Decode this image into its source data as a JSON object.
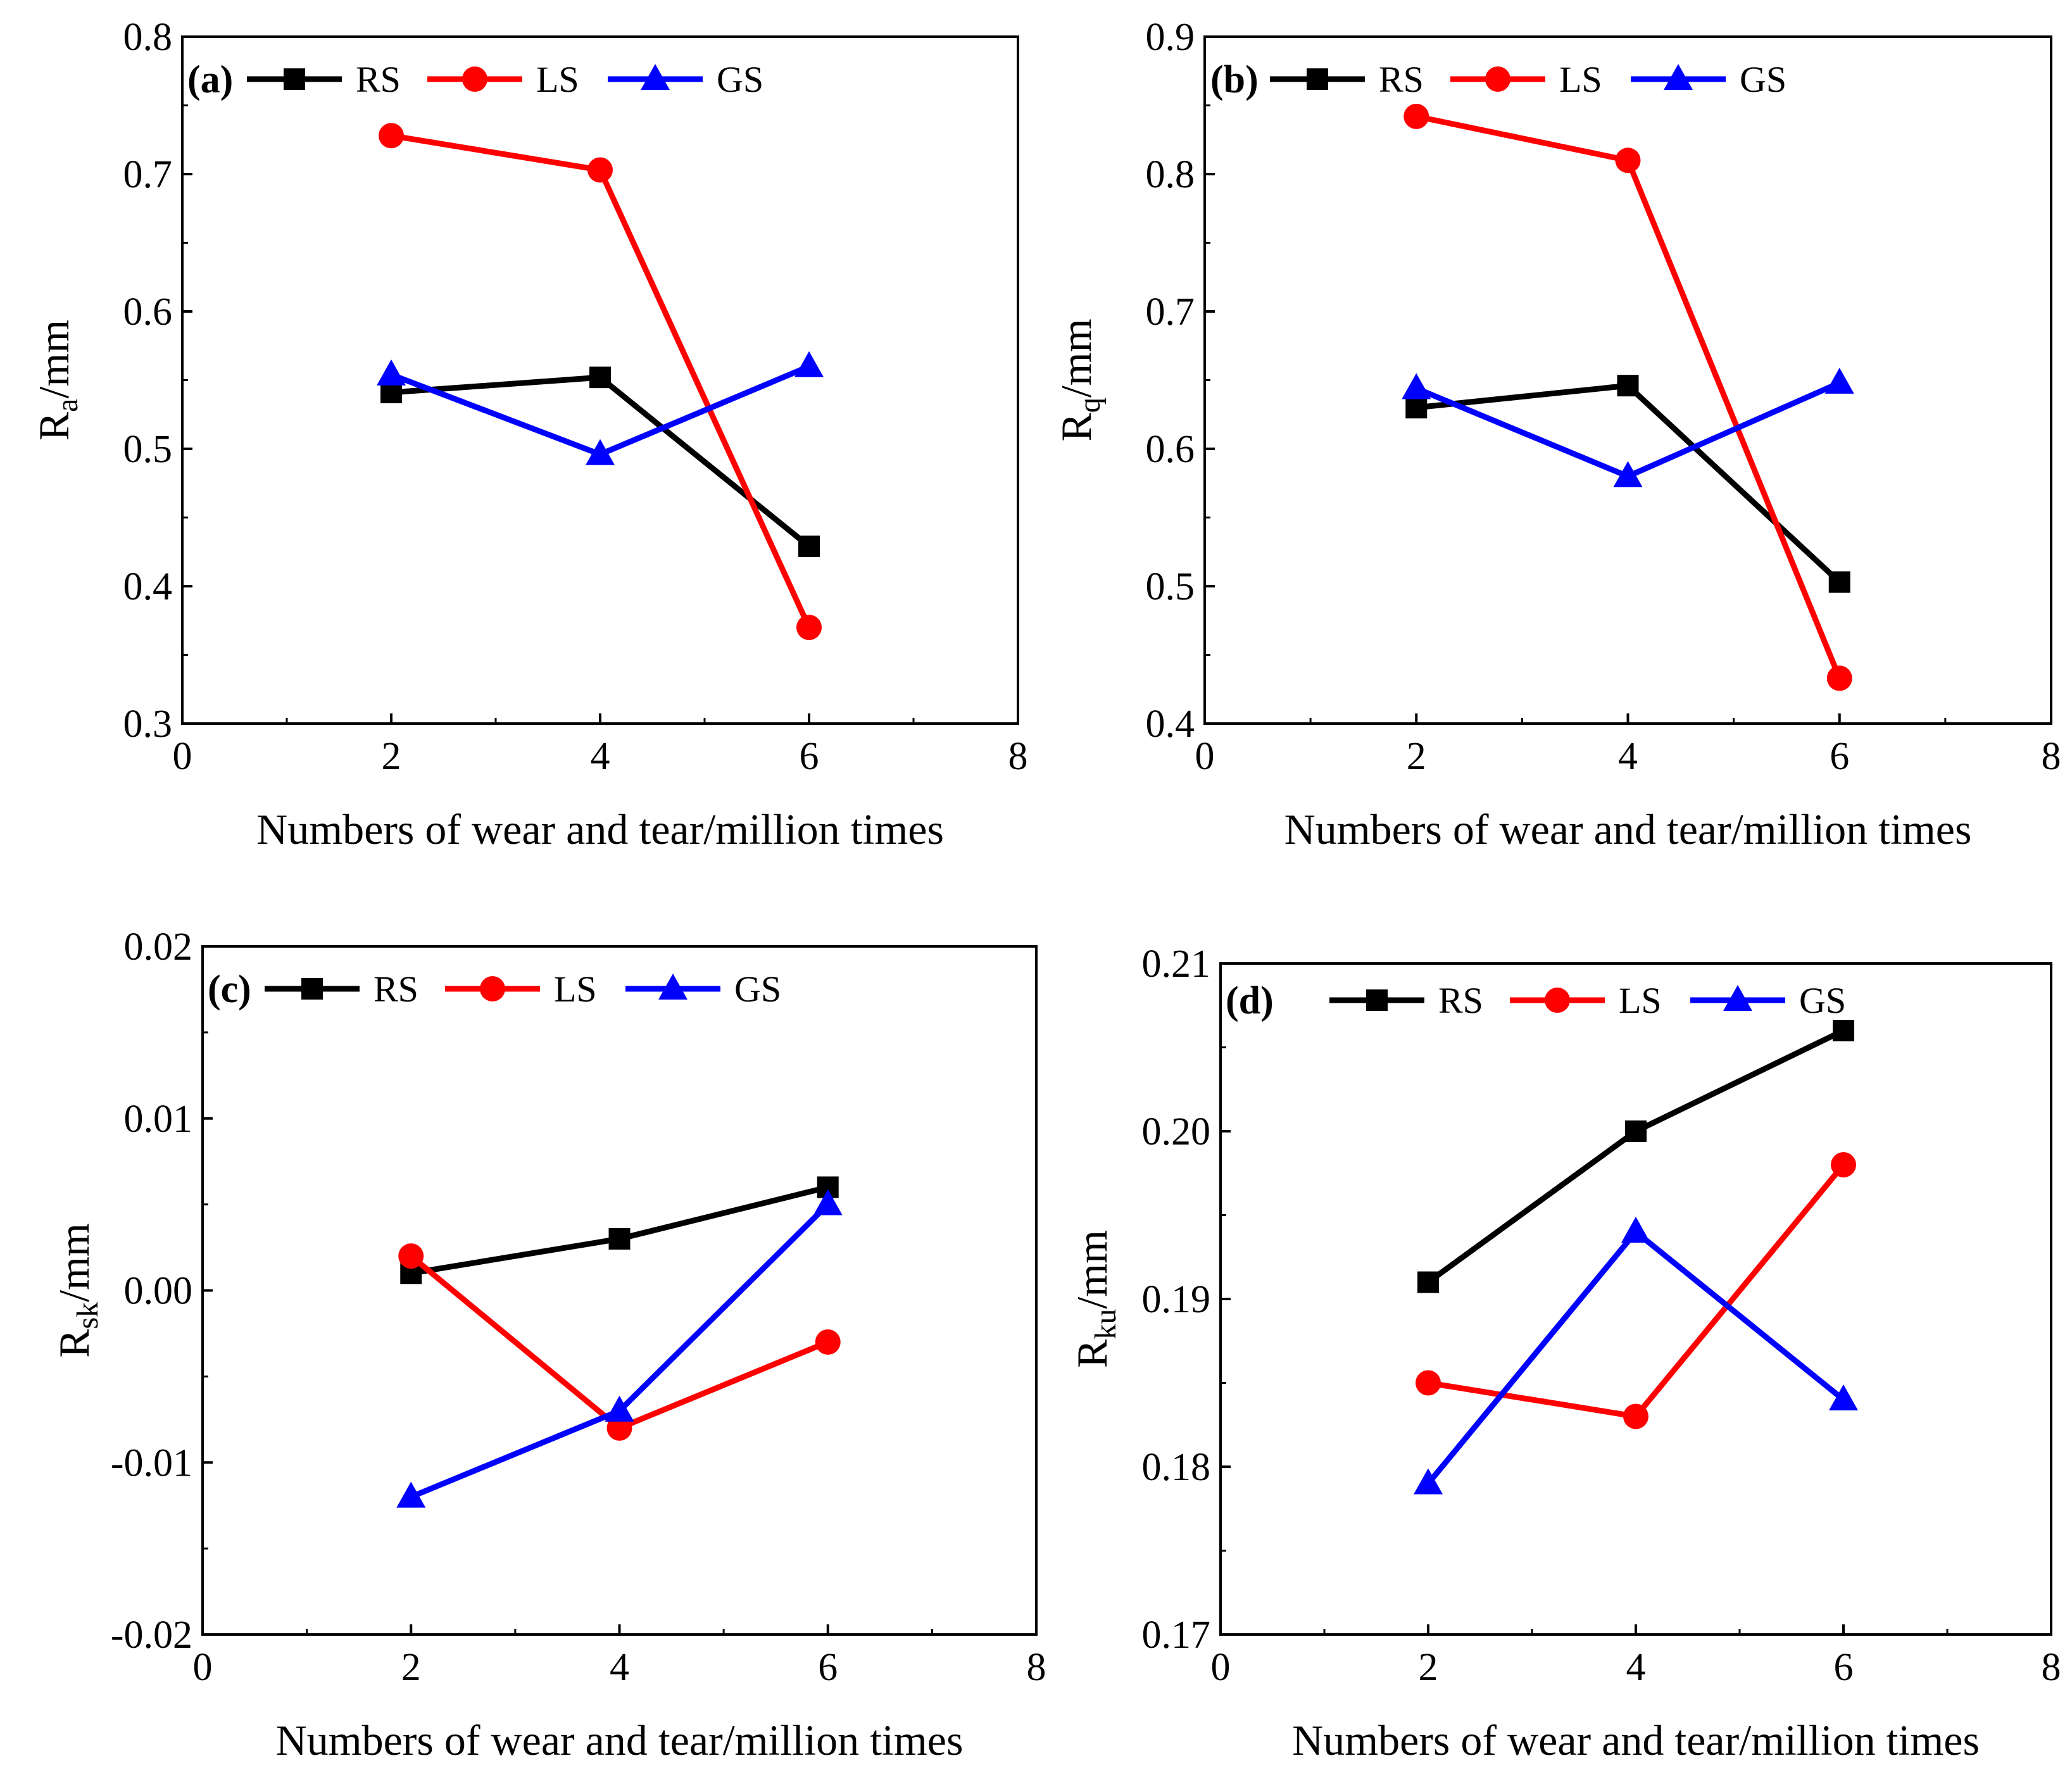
{
  "colors": {
    "RS": "#000000",
    "LS": "#ff0000",
    "GS": "#0000ff"
  },
  "chart_data": [
    {
      "type": "line",
      "panel_label": "(a)",
      "xlabel": "Numbers of wear and tear/million times",
      "ylabel_main": "R",
      "ylabel_sub": "a",
      "ylabel_unit": "/mm",
      "xlim": [
        0,
        8
      ],
      "ylim": [
        0.3,
        0.8
      ],
      "xticks": [
        "0",
        "2",
        "4",
        "6",
        "8"
      ],
      "yticks": [
        "0.3",
        "0.4",
        "0.5",
        "0.6",
        "0.7",
        "0.8"
      ],
      "x": [
        2,
        4,
        6
      ],
      "series": [
        {
          "name": "RS",
          "marker": "square",
          "values": [
            0.541,
            0.552,
            0.429
          ]
        },
        {
          "name": "LS",
          "marker": "circle",
          "values": [
            0.728,
            0.703,
            0.37
          ]
        },
        {
          "name": "GS",
          "marker": "triangle",
          "values": [
            0.554,
            0.496,
            0.56
          ]
        }
      ]
    },
    {
      "type": "line",
      "panel_label": "(b)",
      "xlabel": "Numbers of wear and tear/million times",
      "ylabel_main": "R",
      "ylabel_sub": "q",
      "ylabel_unit": "/mm",
      "xlim": [
        0,
        8
      ],
      "ylim": [
        0.4,
        0.9
      ],
      "xticks": [
        "0",
        "2",
        "4",
        "6",
        "8"
      ],
      "yticks": [
        "0.4",
        "0.5",
        "0.6",
        "0.7",
        "0.8",
        "0.9"
      ],
      "x": [
        2,
        4,
        6
      ],
      "series": [
        {
          "name": "RS",
          "marker": "square",
          "values": [
            0.63,
            0.646,
            0.503
          ]
        },
        {
          "name": "LS",
          "marker": "circle",
          "values": [
            0.842,
            0.81,
            0.433
          ]
        },
        {
          "name": "GS",
          "marker": "triangle",
          "values": [
            0.644,
            0.58,
            0.648
          ]
        }
      ]
    },
    {
      "type": "line",
      "panel_label": "(c)",
      "xlabel": "Numbers of wear and tear/million times",
      "ylabel_main": "R",
      "ylabel_sub": "sk",
      "ylabel_unit": "/mm",
      "xlim": [
        0,
        8
      ],
      "ylim": [
        -0.02,
        0.02
      ],
      "xticks": [
        "0",
        "2",
        "4",
        "6",
        "8"
      ],
      "yticks": [
        "-0.02",
        "-0.01",
        "0.00",
        "0.01",
        "0.02"
      ],
      "x": [
        2,
        4,
        6
      ],
      "series": [
        {
          "name": "RS",
          "marker": "square",
          "values": [
            0.001,
            0.003,
            0.006
          ]
        },
        {
          "name": "LS",
          "marker": "circle",
          "values": [
            0.002,
            -0.008,
            -0.003
          ]
        },
        {
          "name": "GS",
          "marker": "triangle",
          "values": [
            -0.012,
            -0.007,
            0.005
          ]
        }
      ]
    },
    {
      "type": "line",
      "panel_label": "(d)",
      "xlabel": "Numbers of wear and tear/million times",
      "ylabel_main": "R",
      "ylabel_sub": "ku",
      "ylabel_unit": "/mm",
      "xlim": [
        0,
        8
      ],
      "ylim": [
        0.17,
        0.21
      ],
      "xticks": [
        "0",
        "2",
        "4",
        "6",
        "8"
      ],
      "yticks": [
        "0.17",
        "0.18",
        "0.19",
        "0.20",
        "0.21"
      ],
      "x": [
        2,
        4,
        6
      ],
      "series": [
        {
          "name": "RS",
          "marker": "square",
          "values": [
            0.191,
            0.2,
            0.206
          ]
        },
        {
          "name": "LS",
          "marker": "circle",
          "values": [
            0.185,
            0.183,
            0.198
          ]
        },
        {
          "name": "GS",
          "marker": "triangle",
          "values": [
            0.179,
            0.194,
            0.184
          ]
        }
      ]
    }
  ]
}
